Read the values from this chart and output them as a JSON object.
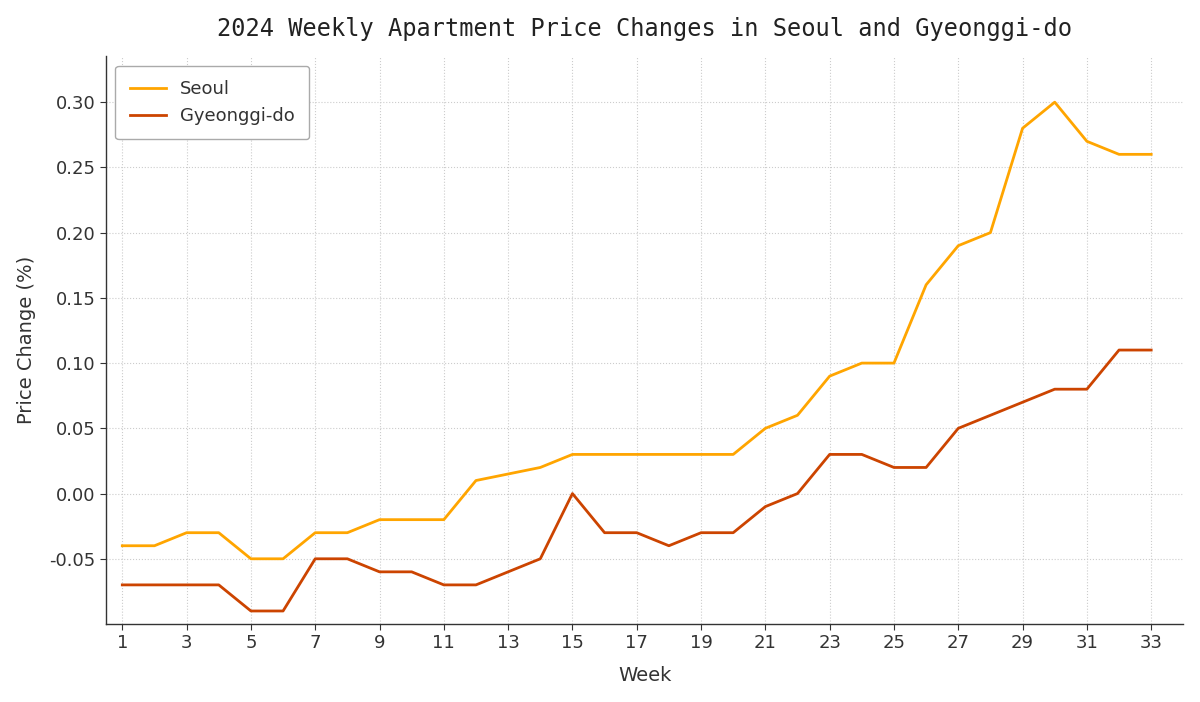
{
  "title": "2024 Weekly Apartment Price Changes in Seoul and Gyeonggi-do",
  "xlabel": "Week",
  "ylabel": "Price Change (%)",
  "background_color": "#ffffff",
  "plot_bg_color": "#ffffff",
  "grid_color": "#cccccc",
  "title_color": "#222222",
  "label_color": "#333333",
  "tick_color": "#333333",
  "spine_color": "#333333",
  "seoul_color": "#FFA500",
  "gyeonggi_color": "#CC4400",
  "line_width": 2.0,
  "weeks": [
    1,
    2,
    3,
    4,
    5,
    6,
    7,
    8,
    9,
    10,
    11,
    12,
    13,
    14,
    15,
    16,
    17,
    18,
    19,
    20,
    21,
    22,
    23,
    24,
    25,
    26,
    27,
    28,
    29,
    30,
    31,
    32,
    33
  ],
  "seoul": [
    -0.04,
    -0.04,
    -0.03,
    -0.03,
    -0.05,
    -0.05,
    -0.03,
    -0.03,
    -0.02,
    -0.02,
    -0.02,
    0.01,
    0.015,
    0.02,
    0.03,
    0.03,
    0.03,
    0.03,
    0.03,
    0.03,
    0.05,
    0.06,
    0.09,
    0.1,
    0.1,
    0.16,
    0.19,
    0.2,
    0.28,
    0.3,
    0.27,
    0.26,
    0.26
  ],
  "gyeonggi": [
    -0.07,
    -0.07,
    -0.07,
    -0.07,
    -0.09,
    -0.09,
    -0.05,
    -0.05,
    -0.06,
    -0.06,
    -0.07,
    -0.07,
    -0.06,
    -0.05,
    0.0,
    -0.03,
    -0.03,
    -0.04,
    -0.03,
    -0.03,
    -0.01,
    0.0,
    0.03,
    0.03,
    0.02,
    0.02,
    0.05,
    0.06,
    0.07,
    0.08,
    0.08,
    0.11,
    0.11
  ],
  "xlim": [
    0.5,
    34
  ],
  "ylim": [
    -0.1,
    0.335
  ],
  "xticks": [
    1,
    3,
    5,
    7,
    9,
    11,
    13,
    15,
    17,
    19,
    21,
    23,
    25,
    27,
    29,
    31,
    33
  ],
  "yticks": [
    -0.05,
    0.0,
    0.05,
    0.1,
    0.15,
    0.2,
    0.25,
    0.3
  ]
}
